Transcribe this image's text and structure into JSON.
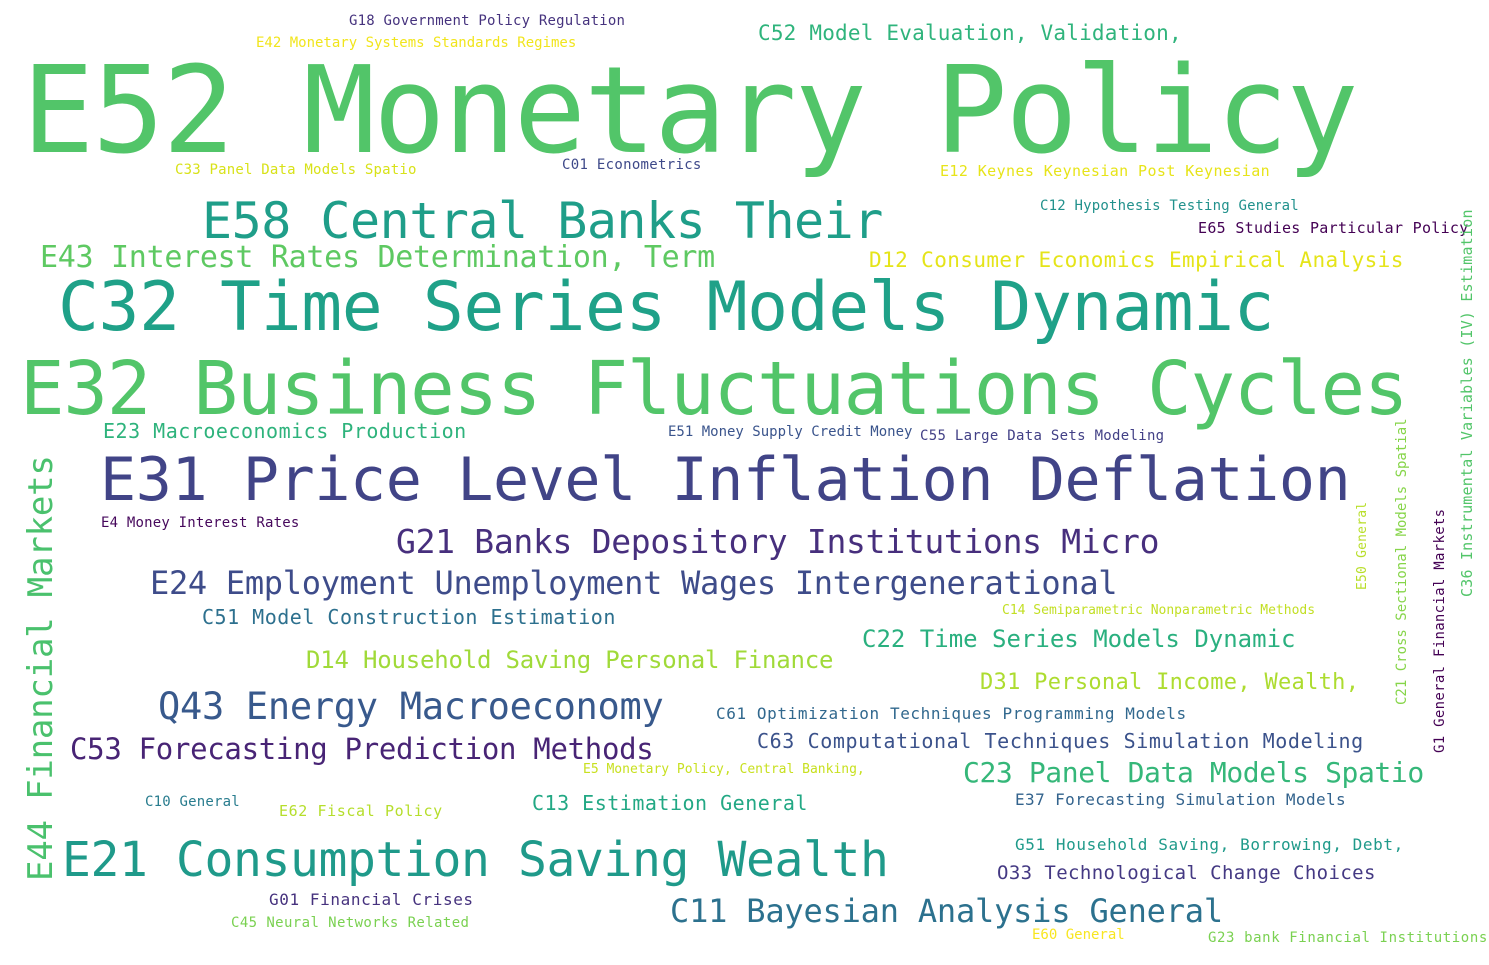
{
  "words": [
    {
      "text": "E52 Monetary Policy",
      "color": "#52c569"
    },
    {
      "text": "E32 Business Fluctuations Cycles",
      "color": "#52c569"
    },
    {
      "text": "C32 Time Series Models Dynamic",
      "color": "#1fa188"
    },
    {
      "text": "E31 Price Level Inflation Deflation",
      "color": "#414487"
    },
    {
      "text": "E58 Central Banks Their",
      "color": "#1f9e89"
    },
    {
      "text": "E21 Consumption Saving Wealth",
      "color": "#1f9a8a"
    },
    {
      "text": "E44 Financial Markets",
      "color": "#4ac16d"
    },
    {
      "text": "G21 Banks Depository Institutions Micro",
      "color": "#472f7d"
    },
    {
      "text": "E24 Employment Unemployment Wages Intergenerational",
      "color": "#3e4c8a"
    },
    {
      "text": "Q43 Energy Macroeconomy",
      "color": "#38598c"
    },
    {
      "text": "C11 Bayesian Analysis General",
      "color": "#2c718e"
    },
    {
      "text": "E43 Interest Rates Determination, Term",
      "color": "#5ec962"
    },
    {
      "text": "C53 Forecasting Prediction Methods",
      "color": "#482475"
    },
    {
      "text": "C23 Panel Data Models Spatio",
      "color": "#35b779"
    },
    {
      "text": "C22 Time Series Models Dynamic",
      "color": "#2ab07f"
    },
    {
      "text": "D14 Household Saving Personal Finance",
      "color": "#a0da39"
    },
    {
      "text": "D31 Personal Income, Wealth,",
      "color": "#addc30"
    },
    {
      "text": "D12 Consumer Economics Empirical Analysis",
      "color": "#e5e419"
    },
    {
      "text": "C52 Model Evaluation, Validation,",
      "color": "#2fb47c"
    },
    {
      "text": "C63 Computational Techniques Simulation Modeling",
      "color": "#3b528b"
    },
    {
      "text": "O33 Technological Change Choices",
      "color": "#443983"
    },
    {
      "text": "E23 Macroeconomics Production",
      "color": "#2eb37c"
    },
    {
      "text": "C51 Model Construction Estimation",
      "color": "#2d708e"
    },
    {
      "text": "C13 Estimation General",
      "color": "#22a884"
    },
    {
      "text": "C61 Optimization Techniques Programming Models",
      "color": "#31688e"
    },
    {
      "text": "G51 Household Saving, Borrowing, Debt,",
      "color": "#1f9a8a"
    },
    {
      "text": "E37 Forecasting Simulation Models",
      "color": "#33638d"
    },
    {
      "text": "G01 Financial Crises",
      "color": "#46327e"
    },
    {
      "text": "C55 Large Data Sets Modeling",
      "color": "#424086"
    },
    {
      "text": "E65 Studies Particular Policy",
      "color": "#440154"
    },
    {
      "text": "C12 Hypothesis Testing General",
      "color": "#21918c"
    },
    {
      "text": "E12 Keynes Keynesian Post Keynesian",
      "color": "#e7e419"
    },
    {
      "text": "C01 Econometrics",
      "color": "#3e4989"
    },
    {
      "text": "C33 Panel Data Models Spatio",
      "color": "#d8e219"
    },
    {
      "text": "G18 Government Policy Regulation",
      "color": "#46337e"
    },
    {
      "text": "E42 Monetary Systems Standards Regimes",
      "color": "#f1e51d"
    },
    {
      "text": "E51 Money Supply Credit Money",
      "color": "#3a548c"
    },
    {
      "text": "E4 Money Interest Rates",
      "color": "#46085c"
    },
    {
      "text": "C14 Semiparametric Nonparametric Methods",
      "color": "#c2df23"
    },
    {
      "text": "E5 Monetary Policy, Central Banking,",
      "color": "#c8e020"
    },
    {
      "text": "C10 General",
      "color": "#287c8e"
    },
    {
      "text": "E62 Fiscal Policy",
      "color": "#b5de2b"
    },
    {
      "text": "C45 Neural Networks Related",
      "color": "#7ad151"
    },
    {
      "text": "E60 General",
      "color": "#f8e621"
    },
    {
      "text": "G23 bank Financial Institutions",
      "color": "#7ad151"
    },
    {
      "text": "C36 Instrumental Variables (IV) Estimation",
      "color": "#52c569"
    },
    {
      "text": "C21 Cross Sectional Models Spatial",
      "color": "#86d549"
    },
    {
      "text": "G1 General Financial Markets",
      "color": "#440154"
    },
    {
      "text": "E50 General",
      "color": "#b8de29"
    }
  ]
}
